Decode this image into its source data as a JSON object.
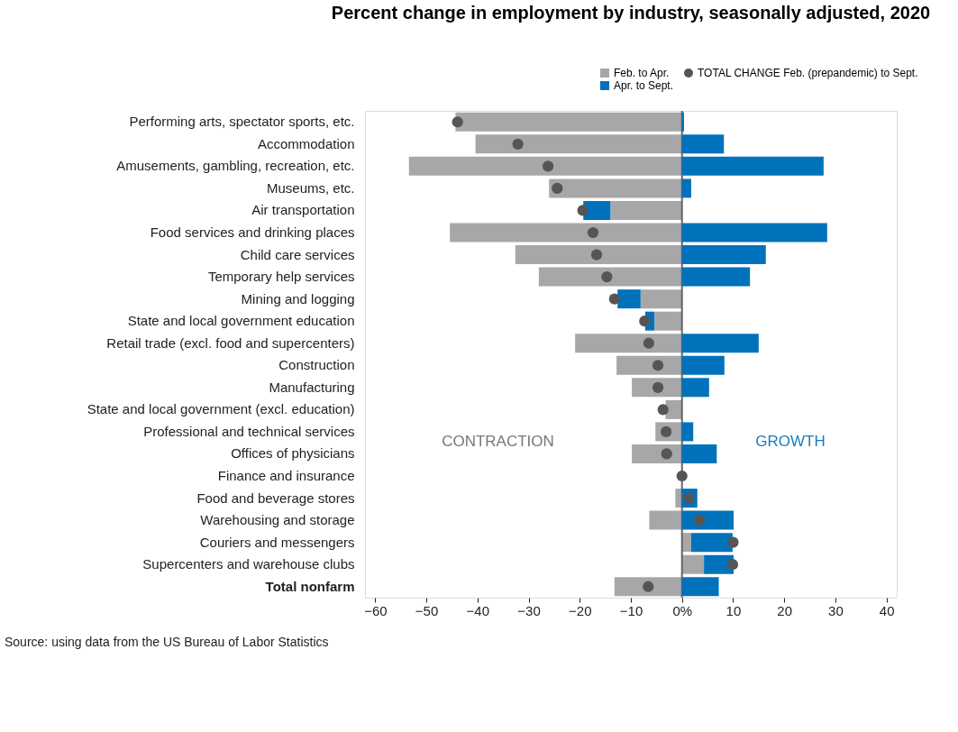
{
  "chart_data": {
    "type": "bar",
    "orientation": "horizontal",
    "title": "Percent change in employment by industry, seasonally adjusted, 2020",
    "categories": [
      "Performing arts, spectator sports, etc.",
      "Accommodation",
      "Amusements, gambling, recreation, etc.",
      "Museums, etc.",
      "Air transportation",
      "Food services and drinking places",
      "Child care services",
      "Temporary help services",
      "Mining and logging",
      "State and local government education",
      "Retail trade (excl. food and supercenters)",
      "Construction",
      "Manufacturing",
      "State and local government (excl. education)",
      "Professional and technical services",
      "Offices of physicians",
      "Finance and insurance",
      "Food and beverage stores",
      "Warehousing and storage",
      "Couriers and messengers",
      "Supercenters and warehouse clubs",
      "Total nonfarm"
    ],
    "series": [
      {
        "name": "Feb. to Apr.",
        "color": "#a7a7a9",
        "values": [
          -44.3,
          -40.4,
          -53.4,
          -26.0,
          -14.0,
          -45.4,
          -32.6,
          -28.0,
          -8.1,
          -5.4,
          -20.9,
          -12.8,
          -9.8,
          -3.2,
          -5.2,
          -9.8,
          null,
          -1.3,
          -6.4,
          1.8,
          4.3,
          -13.2
        ]
      },
      {
        "name": "Apr. to Sept.",
        "color": "#0072bc",
        "values": [
          0.4,
          8.2,
          27.7,
          1.8,
          -5.3,
          28.4,
          16.4,
          13.3,
          -4.5,
          -1.8,
          15.0,
          8.3,
          5.3,
          null,
          2.2,
          6.8,
          null,
          3.0,
          10.1,
          8.1,
          5.8,
          7.2
        ]
      },
      {
        "name": "TOTAL CHANGE Feb. (prepandemic) to Sept.",
        "color": "#555555",
        "type": "scatter",
        "marker": "circle",
        "values": [
          -43.9,
          -32.1,
          -26.2,
          -24.4,
          -19.4,
          -17.4,
          -16.7,
          -14.7,
          -13.2,
          -7.3,
          -6.5,
          -4.7,
          -4.7,
          -3.7,
          -3.1,
          -3.0,
          0.0,
          1.4,
          3.4,
          10.0,
          9.9,
          -6.6
        ]
      }
    ],
    "xlim": [
      -62,
      42
    ],
    "xticks": [
      -60,
      -50,
      -40,
      -30,
      -20,
      -10,
      {
        "value": 0,
        "label": "0%"
      },
      10,
      20,
      30,
      40
    ],
    "ref_lines": [
      {
        "axis": "x",
        "value": 0,
        "color": "#666666"
      }
    ],
    "legend": "top right",
    "stacked": true,
    "grid": false,
    "annotations": [
      "CONTRACTION",
      "GROWTH",
      "Source: using data from the US Bureau of Labor Statistics"
    ]
  }
}
